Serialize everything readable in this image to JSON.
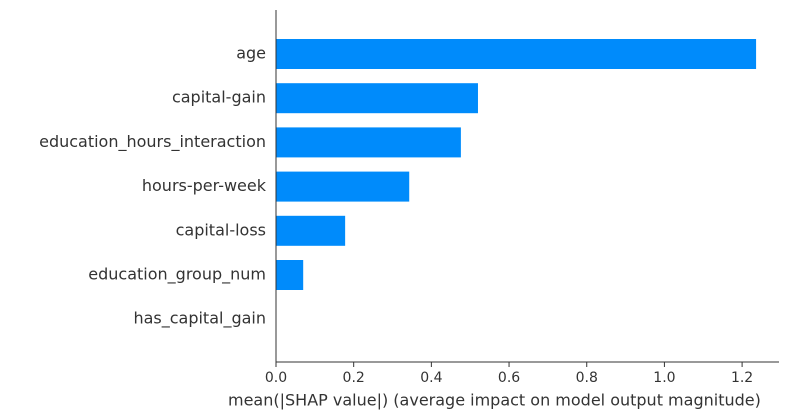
{
  "chart_data": {
    "type": "bar",
    "orientation": "horizontal",
    "x_label": "mean(|SHAP value|) (average impact on model output magnitude)",
    "categories": [
      "age",
      "capital-gain",
      "education_hours_interaction",
      "hours-per-week",
      "capital-loss",
      "education_group_num",
      "has_capital_gain"
    ],
    "values": [
      1.236,
      0.52,
      0.476,
      0.343,
      0.178,
      0.07,
      0
    ],
    "color": "#008bfb",
    "xlim": [
      0,
      1.295
    ],
    "xticks": [
      {
        "value": 0,
        "label": "0.0"
      },
      0.2,
      0.4,
      0.6,
      0.8,
      {
        "value": 1,
        "label": "1.0"
      },
      1.2
    ]
  }
}
